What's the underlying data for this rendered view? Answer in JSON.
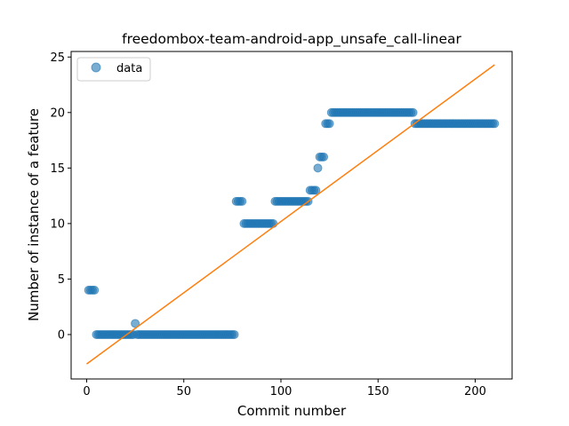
{
  "chart_data": {
    "type": "scatter",
    "title": "freedombox-team-android-app_unsafe_call-linear",
    "xlabel": "Commit number",
    "ylabel": "Number of instance of a feature",
    "xlim": [
      -8,
      219
    ],
    "ylim": [
      -4,
      25.5
    ],
    "xticks": [
      0,
      50,
      100,
      150,
      200
    ],
    "yticks": [
      0,
      5,
      10,
      15,
      20,
      25
    ],
    "grid": false,
    "legend": {
      "placement": "top-left",
      "entries": [
        "data"
      ]
    },
    "colors": {
      "points": "#1f77b4",
      "fit_line": "#ff7f0e"
    },
    "series": [
      {
        "name": "data",
        "kind": "points",
        "segments": [
          {
            "x_start": 1,
            "x_end": 4,
            "y": 4
          },
          {
            "x_start": 5,
            "x_end": 24,
            "y": 0
          },
          {
            "x_start": 25,
            "x_end": 25,
            "y": 1
          },
          {
            "x_start": 26,
            "x_end": 76,
            "y": 0
          },
          {
            "x_start": 77,
            "x_end": 80,
            "y": 12
          },
          {
            "x_start": 81,
            "x_end": 96,
            "y": 10
          },
          {
            "x_start": 97,
            "x_end": 114,
            "y": 12
          },
          {
            "x_start": 115,
            "x_end": 118,
            "y": 13
          },
          {
            "x_start": 119,
            "x_end": 119,
            "y": 15
          },
          {
            "x_start": 120,
            "x_end": 122,
            "y": 16
          },
          {
            "x_start": 123,
            "x_end": 125,
            "y": 19
          },
          {
            "x_start": 126,
            "x_end": 168,
            "y": 20
          },
          {
            "x_start": 169,
            "x_end": 210,
            "y": 19
          }
        ]
      },
      {
        "kind": "line",
        "x": [
          0,
          210
        ],
        "y": [
          -2.65,
          24.3
        ]
      }
    ]
  }
}
